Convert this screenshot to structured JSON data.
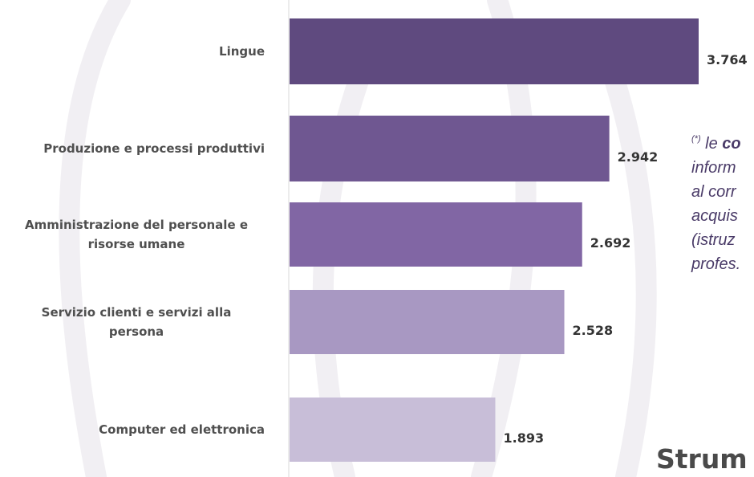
{
  "chart_data": {
    "type": "bar",
    "orientation": "horizontal",
    "categories": [
      [
        "Lingue"
      ],
      [
        "Produzione e processi produttivi"
      ],
      [
        "Amministrazione del personale e",
        "risorse umane"
      ],
      [
        "Servizio clienti e servizi alla",
        "persona"
      ],
      [
        "Computer ed elettronica"
      ]
    ],
    "values": [
      3764,
      2942,
      2692,
      2528,
      1893
    ],
    "value_labels": [
      "3.764",
      "2.942",
      "2.692",
      "2.528",
      "1.893"
    ],
    "colors": [
      "#5f4a7f",
      "#6f5791",
      "#8166a4",
      "#a898c2",
      "#c8bed8"
    ],
    "xlim": [
      0,
      3764
    ],
    "grid": false,
    "legend": "none"
  },
  "note": {
    "marker": "(*)",
    "lines": [
      "le co",
      "inform",
      "al corr",
      "acquis",
      "(istruz",
      "profes."
    ]
  },
  "section_title": "Strum"
}
